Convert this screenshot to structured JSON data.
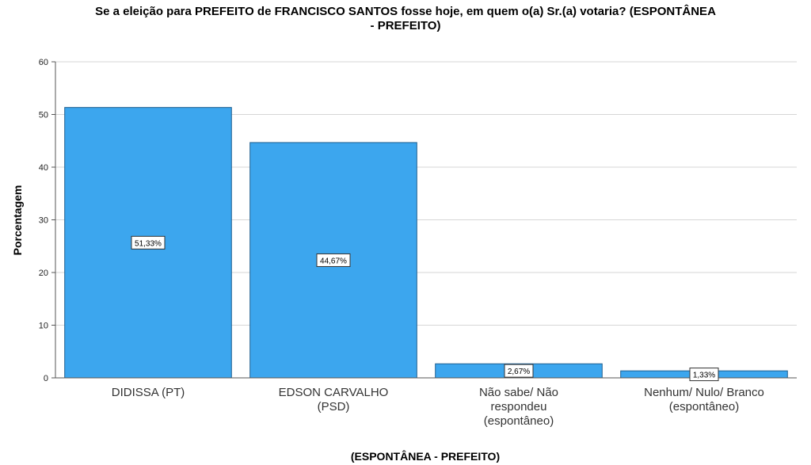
{
  "chart_data": {
    "type": "bar",
    "title_lines": [
      "Se a eleição para PREFEITO de FRANCISCO SANTOS fosse hoje, em quem o(a) Sr.(a) votaria? (ESPONTÂNEA",
      "- PREFEITO)"
    ],
    "categories": [
      [
        "DIDISSA (PT)"
      ],
      [
        "EDSON CARVALHO",
        "(PSD)"
      ],
      [
        "Não sabe/ Não",
        "respondeu",
        "(espontâneo)"
      ],
      [
        "Nenhum/ Nulo/ Branco",
        "(espontâneo)"
      ]
    ],
    "values": [
      51.33,
      44.67,
      2.67,
      1.33
    ],
    "data_labels": [
      "51,33%",
      "44,67%",
      "2,67%",
      "1,33%"
    ],
    "xlabel": "(ESPONTÂNEA  - PREFEITO)",
    "ylabel": "Porcentagem",
    "ylim": [
      0,
      60
    ],
    "yticks": [
      0,
      10,
      20,
      30,
      40,
      50,
      60
    ],
    "grid": true,
    "colors": {
      "bar": "#3ca6ee",
      "bar_stroke": "#1f5f8f",
      "grid": "#d6d6d6",
      "axis": "#555555"
    }
  }
}
